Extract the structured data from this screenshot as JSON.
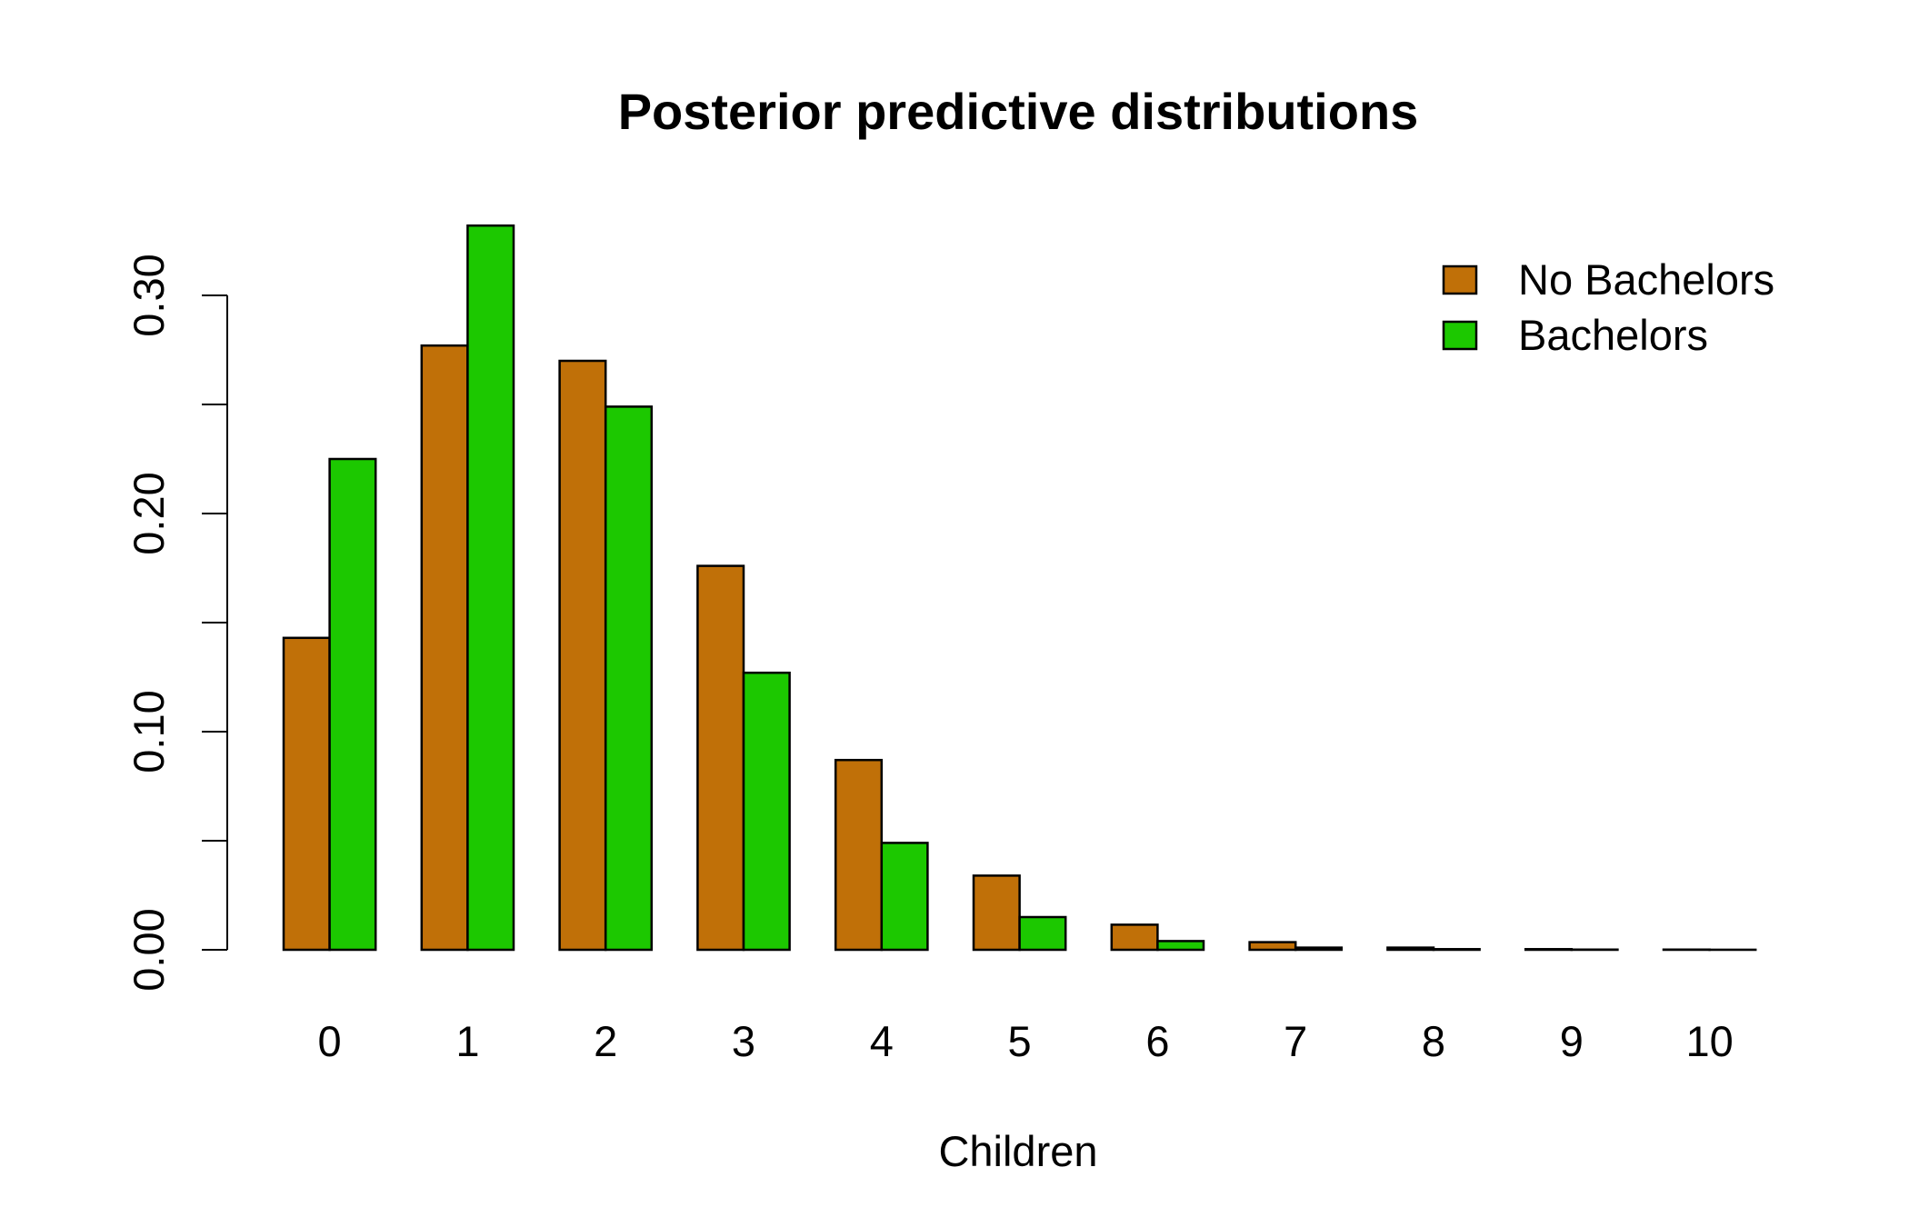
{
  "chart_data": {
    "type": "bar",
    "title": "Posterior predictive distributions",
    "xlabel": "Children",
    "ylabel": "",
    "categories": [
      "0",
      "1",
      "2",
      "3",
      "4",
      "5",
      "6",
      "7",
      "8",
      "9",
      "10"
    ],
    "series": [
      {
        "name": "No Bachelors",
        "color": "#C07008",
        "values": [
          0.143,
          0.277,
          0.27,
          0.176,
          0.087,
          0.034,
          0.0115,
          0.0035,
          0.001,
          0.0003,
          0.0001
        ]
      },
      {
        "name": "Bachelors",
        "color": "#1CC800",
        "values": [
          0.225,
          0.332,
          0.249,
          0.127,
          0.049,
          0.015,
          0.004,
          0.001,
          0.0003,
          0.0001,
          3e-05
        ]
      }
    ],
    "ylim": [
      0,
      0.33
    ],
    "y_ticks": [
      0.0,
      0.05,
      0.1,
      0.15,
      0.2,
      0.25,
      0.3
    ],
    "y_tick_labels": [
      "0.00",
      "",
      "0.10",
      "",
      "0.20",
      "",
      "0.30"
    ],
    "grid": false,
    "legend_position": "top-right"
  }
}
